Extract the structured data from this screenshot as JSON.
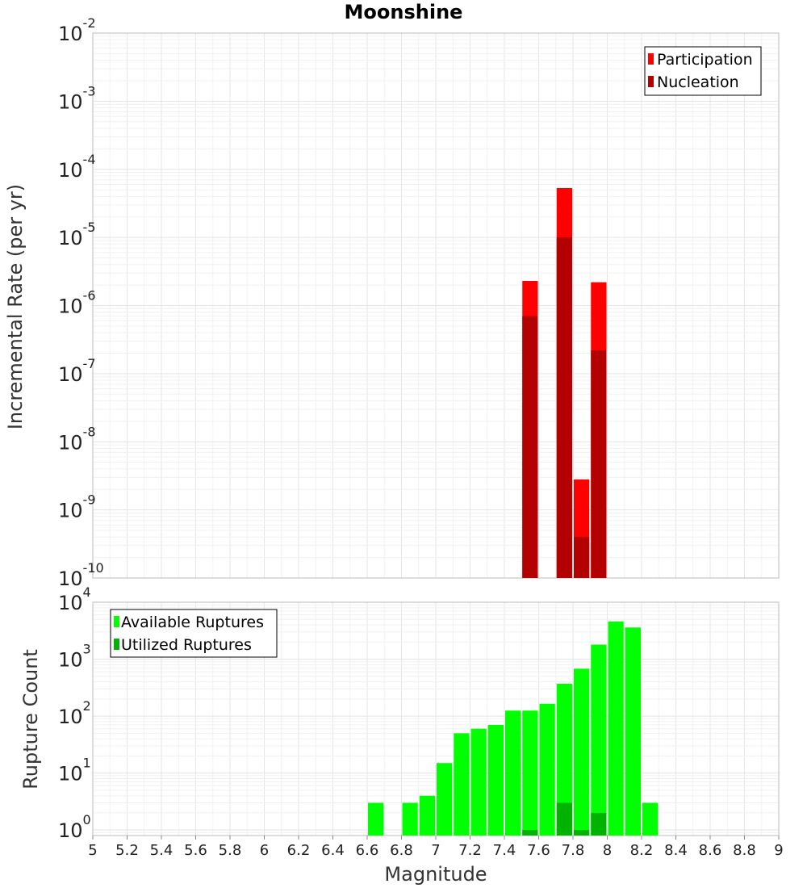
{
  "chart_data": [
    {
      "type": "bar",
      "title": "Moonshine",
      "ylabel": "Incremental Rate (per yr)",
      "yscale": "log",
      "ylim": [
        1e-10,
        0.01
      ],
      "xlim": [
        5,
        9
      ],
      "bin_width": 0.1,
      "grid": true,
      "legend_position": "top-right",
      "y_ticks": [
        {
          "base": "10",
          "exp": "-10",
          "value": 1e-10
        },
        {
          "base": "10",
          "exp": "-9",
          "value": 1e-09
        },
        {
          "base": "10",
          "exp": "-8",
          "value": 1e-08
        },
        {
          "base": "10",
          "exp": "-7",
          "value": 1e-07
        },
        {
          "base": "10",
          "exp": "-6",
          "value": 1e-06
        },
        {
          "base": "10",
          "exp": "-5",
          "value": 1e-05
        },
        {
          "base": "10",
          "exp": "-4",
          "value": 0.0001
        },
        {
          "base": "10",
          "exp": "-3",
          "value": 0.001
        },
        {
          "base": "10",
          "exp": "-2",
          "value": 0.01
        }
      ],
      "series": [
        {
          "name": "Participation",
          "color": "#ff0000",
          "x": [
            7.55,
            7.75,
            7.85,
            7.95
          ],
          "values": [
            2.3e-06,
            5.3e-05,
            2.8e-09,
            2.2e-06
          ]
        },
        {
          "name": "Nucleation",
          "color": "#b30000",
          "x": [
            7.55,
            7.75,
            7.85,
            7.95
          ],
          "values": [
            7e-07,
            1e-05,
            4e-10,
            2.2e-07
          ]
        }
      ]
    },
    {
      "type": "bar",
      "title": "",
      "xlabel": "Magnitude",
      "ylabel": "Rupture Count",
      "yscale": "log",
      "ylim": [
        0.8,
        10000
      ],
      "xlim": [
        5,
        9
      ],
      "bin_width": 0.1,
      "grid": true,
      "legend_position": "top-left",
      "x_ticks": [
        "5",
        "5.2",
        "5.4",
        "5.6",
        "5.8",
        "6",
        "6.2",
        "6.4",
        "6.6",
        "6.8",
        "7",
        "7.2",
        "7.4",
        "7.6",
        "7.8",
        "8",
        "8.2",
        "8.4",
        "8.6",
        "8.8",
        "9"
      ],
      "y_ticks": [
        {
          "base": "10",
          "exp": "0",
          "value": 1
        },
        {
          "base": "10",
          "exp": "1",
          "value": 10
        },
        {
          "base": "10",
          "exp": "2",
          "value": 100
        },
        {
          "base": "10",
          "exp": "3",
          "value": 1000
        },
        {
          "base": "10",
          "exp": "4",
          "value": 10000
        }
      ],
      "series": [
        {
          "name": "Available Ruptures",
          "color": "#00ff00",
          "x": [
            6.65,
            6.85,
            6.95,
            7.05,
            7.15,
            7.25,
            7.35,
            7.45,
            7.55,
            7.65,
            7.75,
            7.85,
            7.95,
            8.05,
            8.15,
            8.25
          ],
          "values": [
            3,
            3,
            4,
            15,
            50,
            60,
            70,
            125,
            125,
            165,
            370,
            680,
            1800,
            4600,
            3600,
            3
          ]
        },
        {
          "name": "Utilized Ruptures",
          "color": "#00b300",
          "x": [
            7.55,
            7.75,
            7.85,
            7.95
          ],
          "values": [
            1,
            3,
            1,
            2
          ]
        }
      ]
    }
  ]
}
